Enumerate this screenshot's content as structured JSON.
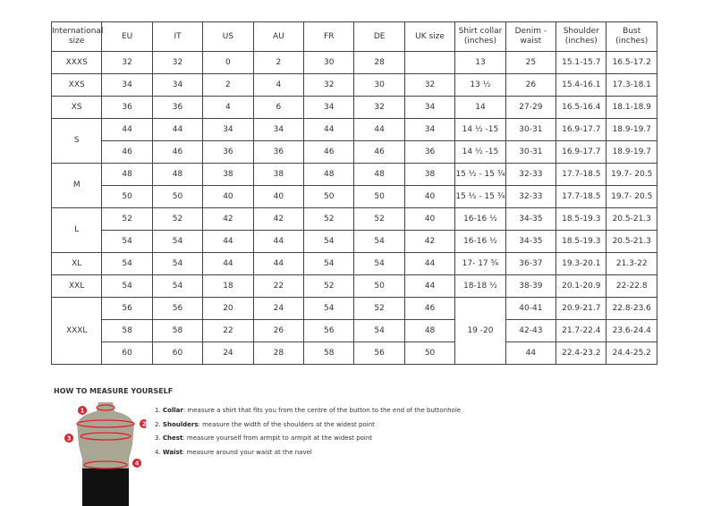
{
  "table": {
    "headers": [
      "International size",
      "EU",
      "IT",
      "US",
      "AU",
      "FR",
      "DE",
      "UK size",
      "Shirt collar (inches)",
      "Denim - waist",
      "Shoulder (inches)",
      "Bust (inches)"
    ],
    "groups": [
      {
        "size": "XXXS",
        "rows": [
          [
            "32",
            "32",
            "0",
            "2",
            "30",
            "28",
            "",
            "13",
            "25",
            "15.1-15.7",
            "16.5-17.2"
          ]
        ]
      },
      {
        "size": "XXS",
        "rows": [
          [
            "34",
            "34",
            "2",
            "4",
            "32",
            "30",
            "32",
            "13 ½",
            "26",
            "15.4-16.1",
            "17.3-18.1"
          ]
        ]
      },
      {
        "size": "XS",
        "rows": [
          [
            "36",
            "36",
            "4",
            "6",
            "34",
            "32",
            "34",
            "14",
            "27-29",
            "16.5-16.4",
            "18.1-18.9"
          ]
        ]
      },
      {
        "size": "S",
        "rows": [
          [
            "44",
            "44",
            "34",
            "34",
            "44",
            "44",
            "34",
            "14 ½ -15",
            "30-31",
            "16.9-17.7",
            "18.9-19.7"
          ],
          [
            "46",
            "46",
            "36",
            "36",
            "46",
            "46",
            "36",
            "14 ½ -15",
            "30-31",
            "16.9-17.7",
            "18.9-19.7"
          ]
        ]
      },
      {
        "size": "M",
        "rows": [
          [
            "48",
            "48",
            "38",
            "38",
            "48",
            "48",
            "38",
            "15 ½ - 15 ¾",
            "32-33",
            "17.7-18.5",
            "19.7- 20.5"
          ],
          [
            "50",
            "50",
            "40",
            "40",
            "50",
            "50",
            "40",
            "15 ½ - 15 ¾",
            "32-33",
            "17.7-18.5",
            "19.7- 20.5"
          ]
        ]
      },
      {
        "size": "L",
        "rows": [
          [
            "52",
            "52",
            "42",
            "42",
            "52",
            "52",
            "40",
            "16-16 ½",
            "34-35",
            "18.5-19.3",
            "20.5-21.3"
          ],
          [
            "54",
            "54",
            "44",
            "44",
            "54",
            "54",
            "42",
            "16-16 ½",
            "34-35",
            "18.5-19.3",
            "20.5-21.3"
          ]
        ]
      },
      {
        "size": "XL",
        "rows": [
          [
            "54",
            "54",
            "44",
            "44",
            "54",
            "54",
            "44",
            "17- 17 ¾",
            "36-37",
            "19.3-20.1",
            "21.3-22"
          ]
        ]
      },
      {
        "size": "XXL",
        "rows": [
          [
            "54",
            "54",
            "18",
            "22",
            "52",
            "50",
            "44",
            "18-18 ½",
            "38-39",
            "20.1-20.9",
            "22-22.8"
          ]
        ]
      },
      {
        "size": "XXXL",
        "merged_collar": "19 -20",
        "rows": [
          [
            "56",
            "56",
            "20",
            "24",
            "54",
            "52",
            "46",
            "",
            "40-41",
            "20.9-21.7",
            "22.8-23.6"
          ],
          [
            "58",
            "58",
            "22",
            "26",
            "56",
            "54",
            "48",
            "",
            "42-43",
            "21.7-22.4",
            "23.6-24.4"
          ],
          [
            "60",
            "60",
            "24",
            "28",
            "58",
            "56",
            "50",
            "",
            "44",
            "22.4-23.2",
            "24.4-25.2"
          ]
        ]
      }
    ]
  },
  "howto": {
    "title": "HOW TO MEASURE YOURSELF",
    "steps": [
      {
        "num": "1.",
        "term": "Collar",
        "text": ": measure a shirt that fits you from the centre of the button to the end of the buttonhole"
      },
      {
        "num": "2.",
        "term": "Shoulders",
        "text": ": measure the width of the shoulders at the widest point"
      },
      {
        "num": "3.",
        "term": "Chest",
        "text": ": measure yourself from armpit to armpit at the widest point"
      },
      {
        "num": "4.",
        "term": "Waist",
        "text": ": measure around your waist at the navel"
      }
    ],
    "markers": [
      "1",
      "2",
      "3",
      "4"
    ],
    "colors": {
      "torso": "#a9a793",
      "marker": "#e0202a",
      "shorts": "#111111"
    }
  }
}
